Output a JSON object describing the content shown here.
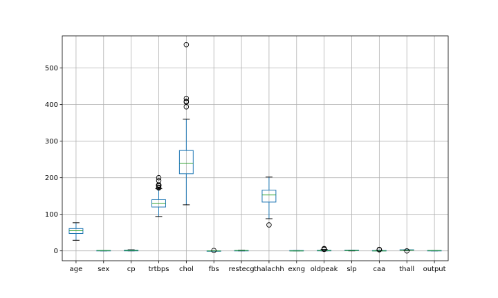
{
  "chart_data": {
    "type": "boxplot",
    "title": "",
    "xlabel": "",
    "ylabel": "",
    "ylim": [
      -27,
      588
    ],
    "yticks": [
      0,
      100,
      200,
      300,
      400,
      500
    ],
    "grid": true,
    "colors": {
      "box": "#1f77b4",
      "median": "#2ca02c",
      "whisker": "#000000",
      "grid": "#b0b0b0"
    },
    "categories": [
      "age",
      "sex",
      "cp",
      "trtbps",
      "chol",
      "fbs",
      "restecg",
      "thalachh",
      "exng",
      "oldpeak",
      "slp",
      "caa",
      "thall",
      "output"
    ],
    "boxes": [
      {
        "label": "age",
        "whislo": 29,
        "q1": 47.5,
        "med": 55,
        "q3": 61,
        "whishi": 77,
        "fliers": []
      },
      {
        "label": "sex",
        "whislo": 0,
        "q1": 0,
        "med": 1,
        "q3": 1,
        "whishi": 1,
        "fliers": []
      },
      {
        "label": "cp",
        "whislo": 0,
        "q1": 0,
        "med": 1,
        "q3": 2,
        "whishi": 3,
        "fliers": []
      },
      {
        "label": "trtbps",
        "whislo": 94,
        "q1": 120,
        "med": 130,
        "q3": 140,
        "whishi": 170,
        "fliers": [
          172,
          174,
          178,
          178,
          180,
          180,
          180,
          192,
          200
        ]
      },
      {
        "label": "chol",
        "whislo": 126,
        "q1": 211,
        "med": 240,
        "q3": 274.5,
        "whishi": 360,
        "fliers": [
          394,
          407,
          409,
          417,
          564
        ]
      },
      {
        "label": "fbs",
        "whislo": 0,
        "q1": 0,
        "med": 0,
        "q3": 0,
        "whishi": 0,
        "fliers": [
          1
        ]
      },
      {
        "label": "restecg",
        "whislo": 0,
        "q1": 0,
        "med": 1,
        "q3": 1,
        "whishi": 2,
        "fliers": []
      },
      {
        "label": "thalachh",
        "whislo": 88,
        "q1": 133.5,
        "med": 153,
        "q3": 166,
        "whishi": 202,
        "fliers": [
          71
        ]
      },
      {
        "label": "exng",
        "whislo": 0,
        "q1": 0,
        "med": 0,
        "q3": 1,
        "whishi": 1,
        "fliers": []
      },
      {
        "label": "oldpeak",
        "whislo": 0,
        "q1": 0,
        "med": 0.8,
        "q3": 1.6,
        "whishi": 4.0,
        "fliers": [
          4.2,
          4.4,
          5.6,
          6.2
        ]
      },
      {
        "label": "slp",
        "whislo": 0,
        "q1": 1,
        "med": 1,
        "q3": 2,
        "whishi": 2,
        "fliers": []
      },
      {
        "label": "caa",
        "whislo": 0,
        "q1": 0,
        "med": 0,
        "q3": 1,
        "whishi": 2,
        "fliers": [
          3,
          4
        ]
      },
      {
        "label": "thall",
        "whislo": 1,
        "q1": 2,
        "med": 2,
        "q3": 3,
        "whishi": 3,
        "fliers": [
          0
        ]
      },
      {
        "label": "output",
        "whislo": 0,
        "q1": 0,
        "med": 1,
        "q3": 1,
        "whishi": 1,
        "fliers": []
      }
    ]
  }
}
